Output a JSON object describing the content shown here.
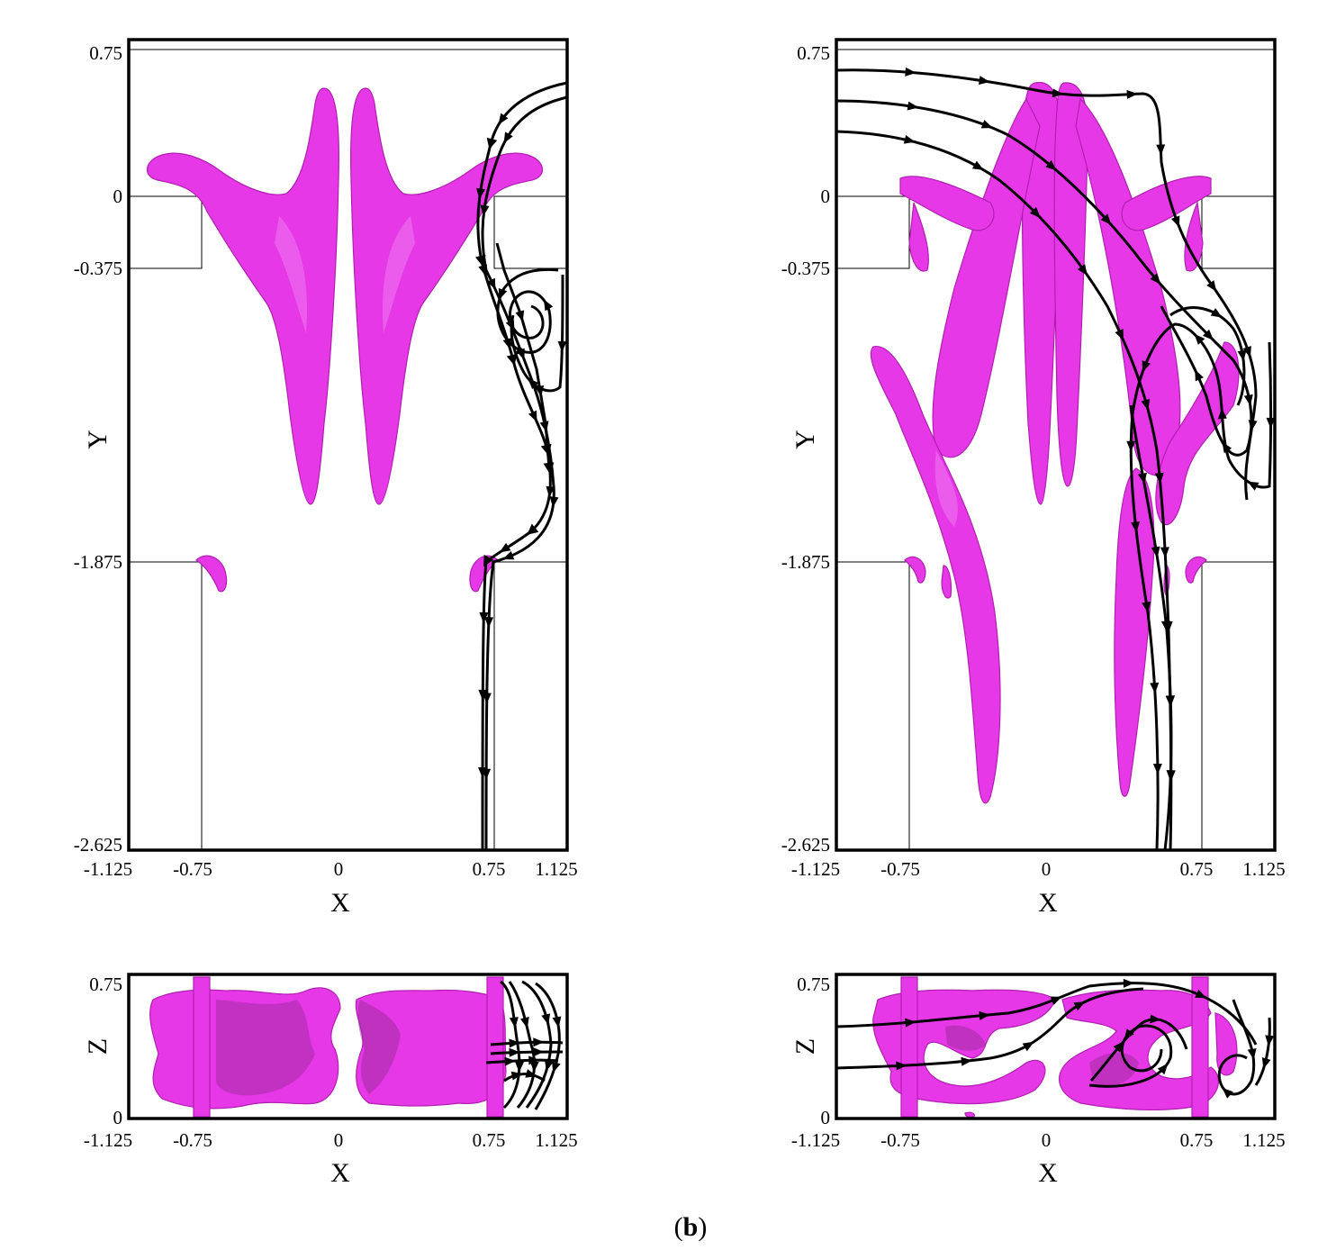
{
  "panels": [
    {
      "id": "top-left",
      "x_ticks": [
        "-1.125",
        "-0.75",
        "0",
        "0.75",
        "1.125"
      ],
      "y_ticks": [
        "0.75",
        "0",
        "-0.375",
        "-1.875",
        "-2.625"
      ],
      "xlabel": "X",
      "ylabel": "Y"
    },
    {
      "id": "top-right",
      "x_ticks": [
        "-1.125",
        "-0.75",
        "0",
        "0.75",
        "1.125"
      ],
      "y_ticks": [
        "0.75",
        "0",
        "-0.375",
        "-1.875",
        "-2.625"
      ],
      "xlabel": "X",
      "ylabel": "Y"
    },
    {
      "id": "bottom-left",
      "x_ticks": [
        "-1.125",
        "-0.75",
        "0",
        "0.75",
        "1.125"
      ],
      "z_ticks": [
        "0.75",
        "0"
      ],
      "xlabel": "X",
      "zlabel": "Z"
    },
    {
      "id": "bottom-right",
      "x_ticks": [
        "-1.125",
        "-0.75",
        "0",
        "0.75",
        "1.125"
      ],
      "z_ticks": [
        "0.75",
        "0"
      ],
      "xlabel": "X",
      "zlabel": "Z"
    }
  ],
  "caption": {
    "open": "(",
    "label": "b",
    "close": ")"
  },
  "colors": {
    "isosurface": "#e638e6",
    "streamlines": "#000000"
  }
}
